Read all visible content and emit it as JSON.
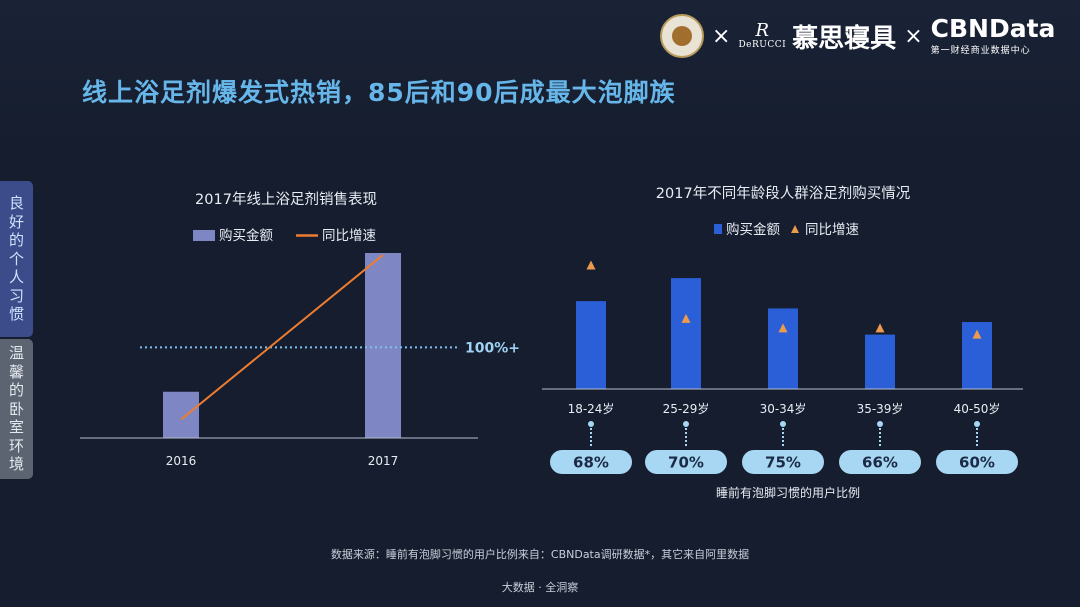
{
  "header": {
    "title": "线上浴足剂爆发式热销，85后和90后成最大泡脚族",
    "logos": {
      "times1": "×",
      "derucci_mark": "R",
      "derucci_word": "DeRUCCI",
      "mousi": "慕思寝具",
      "times2": "×",
      "cbndata": "CBNData",
      "cbndata_sub": "第一财经商业数据中心"
    }
  },
  "sidebar": {
    "items": [
      {
        "label": "良好的个人习惯",
        "chars": [
          "良",
          "好",
          "的",
          "个",
          "人",
          "习",
          "惯"
        ],
        "active": true
      },
      {
        "label": "温馨的卧室环境",
        "chars": [
          "温",
          "馨",
          "的",
          "卧",
          "室",
          "环",
          "境"
        ],
        "active": false
      }
    ]
  },
  "chart_data": [
    {
      "type": "bar",
      "title": "2017年线上浴足剂销售表现",
      "categories": [
        "2016",
        "2017"
      ],
      "series": [
        {
          "name": "购买金额",
          "type": "bar",
          "values": [
            25,
            100
          ],
          "color": "#7f86c4"
        },
        {
          "name": "同比增速",
          "type": "line",
          "values": [
            10,
            99
          ],
          "color": "#ee7d30"
        }
      ],
      "reference_line": {
        "label": "100%+",
        "value": 49
      },
      "ylim": [
        0,
        100
      ],
      "grid": false,
      "legend": "top"
    },
    {
      "type": "bar",
      "title": "2017年不同年龄段人群浴足剂购买情况",
      "categories": [
        "18-24岁",
        "25-29岁",
        "30-34岁",
        "35-39岁",
        "40-50岁"
      ],
      "series": [
        {
          "name": "购买金额",
          "type": "bar",
          "values": [
            84,
            106,
            77,
            52,
            64
          ],
          "color": "#2a5fd8"
        },
        {
          "name": "同比增速",
          "type": "scatter",
          "marker": "triangle",
          "values": [
            118,
            67,
            58,
            58,
            52
          ],
          "color": "#ee9a4c"
        }
      ],
      "ylim": [
        0,
        130
      ],
      "grid": false,
      "legend": "top",
      "sub_metric": {
        "label": "睡前有泡脚习惯的用户比例",
        "values": [
          "68%",
          "70%",
          "75%",
          "66%",
          "60%"
        ],
        "pill_color": "#a8d7f4"
      }
    }
  ],
  "footer": {
    "source": "数据来源：睡前有泡脚习惯的用户比例来自：CBNData调研数据*，其它来自阿里数据",
    "brand": "大数据 · 全洞察"
  }
}
